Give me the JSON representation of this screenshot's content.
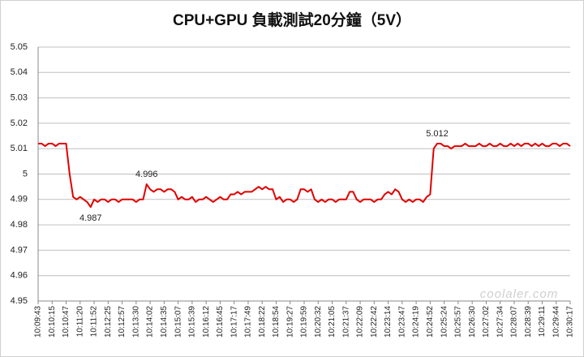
{
  "chart_data": {
    "type": "line",
    "title": "CPU+GPU 負載測試20分鐘（5V）",
    "watermark": "coolaler.com",
    "categories": [
      "10:09:43",
      null,
      null,
      null,
      "10:10:15",
      null,
      null,
      null,
      "10:10:47",
      null,
      null,
      null,
      "10:11:20",
      null,
      null,
      null,
      "10:11:52",
      null,
      null,
      null,
      "10:12:25",
      null,
      null,
      null,
      "10:12:57",
      null,
      null,
      null,
      "10:13:30",
      null,
      null,
      null,
      "10:14:02",
      null,
      null,
      null,
      "10:14:35",
      null,
      null,
      null,
      "10:15:07",
      null,
      null,
      null,
      "10:15:39",
      null,
      null,
      null,
      "10:16:12",
      null,
      null,
      null,
      "10:16:45",
      null,
      null,
      null,
      "10:17:17",
      null,
      null,
      null,
      "10:17:49",
      null,
      null,
      null,
      "10:18:22",
      null,
      null,
      null,
      "10:18:54",
      null,
      null,
      null,
      "10:19:27",
      null,
      null,
      null,
      "10:19:59",
      null,
      null,
      null,
      "10:20:32",
      null,
      null,
      null,
      "10:21:05",
      null,
      null,
      null,
      "10:21:37",
      null,
      null,
      null,
      "10:22:09",
      null,
      null,
      null,
      "10:22:42",
      null,
      null,
      null,
      "10:23:14",
      null,
      null,
      null,
      "10:23:47",
      null,
      null,
      null,
      "10:24:19",
      null,
      null,
      null,
      "10:24:52",
      null,
      null,
      null,
      "10:25:24",
      null,
      null,
      null,
      "10:25:57",
      null,
      null,
      null,
      "10:26:30",
      null,
      null,
      null,
      "10:27:02",
      null,
      null,
      null,
      "10:27:34",
      null,
      null,
      null,
      "10:28:07",
      null,
      null,
      null,
      "10:28:39",
      null,
      null,
      null,
      "10:29:11",
      null,
      null,
      null,
      "10:29:44",
      null,
      null,
      null,
      "10:30:17"
    ],
    "series": [
      {
        "color": "#e00000",
        "values": [
          5.012,
          5.012,
          5.011,
          5.012,
          5.012,
          5.011,
          5.012,
          5.012,
          5.012,
          5,
          4.991,
          4.99,
          4.991,
          4.99,
          4.989,
          4.987,
          4.99,
          4.989,
          4.99,
          4.99,
          4.989,
          4.99,
          4.99,
          4.989,
          4.99,
          4.99,
          4.99,
          4.99,
          4.989,
          4.99,
          4.99,
          4.996,
          4.994,
          4.993,
          4.994,
          4.994,
          4.993,
          4.994,
          4.994,
          4.993,
          4.99,
          4.991,
          4.99,
          4.99,
          4.991,
          4.989,
          4.99,
          4.99,
          4.991,
          4.99,
          4.989,
          4.99,
          4.991,
          4.99,
          4.99,
          4.992,
          4.992,
          4.993,
          4.992,
          4.993,
          4.993,
          4.993,
          4.994,
          4.995,
          4.994,
          4.995,
          4.994,
          4.994,
          4.99,
          4.991,
          4.989,
          4.99,
          4.99,
          4.989,
          4.99,
          4.994,
          4.994,
          4.993,
          4.994,
          4.99,
          4.989,
          4.99,
          4.989,
          4.99,
          4.99,
          4.989,
          4.99,
          4.99,
          4.99,
          4.993,
          4.993,
          4.99,
          4.989,
          4.99,
          4.99,
          4.99,
          4.989,
          4.99,
          4.99,
          4.992,
          4.993,
          4.992,
          4.994,
          4.993,
          4.99,
          4.989,
          4.99,
          4.989,
          4.99,
          4.99,
          4.989,
          4.991,
          4.992,
          5.01,
          5.012,
          5.012,
          5.011,
          5.011,
          5.01,
          5.011,
          5.011,
          5.011,
          5.012,
          5.011,
          5.011,
          5.011,
          5.012,
          5.011,
          5.011,
          5.012,
          5.011,
          5.011,
          5.012,
          5.011,
          5.011,
          5.012,
          5.011,
          5.012,
          5.011,
          5.012,
          5.012,
          5.011,
          5.012,
          5.011,
          5.012,
          5.011,
          5.011,
          5.012,
          5.012,
          5.011,
          5.012,
          5.012,
          5.011
        ],
        "value_labels": [
          null,
          null,
          null,
          null,
          null,
          null,
          null,
          null,
          null,
          null,
          null,
          null,
          null,
          null,
          null,
          "4.987",
          null,
          null,
          null,
          null,
          null,
          null,
          null,
          null,
          null,
          null,
          null,
          null,
          null,
          null,
          null,
          "4.996",
          null,
          null,
          null,
          null,
          null,
          null,
          null,
          null,
          null,
          null,
          null,
          null,
          null,
          null,
          null,
          null,
          null,
          null,
          null,
          null,
          null,
          null,
          null,
          null,
          null,
          null,
          null,
          null,
          null,
          null,
          null,
          null,
          null,
          null,
          null,
          null,
          null,
          null,
          null,
          null,
          null,
          null,
          null,
          null,
          null,
          null,
          null,
          null,
          null,
          null,
          null,
          null,
          null,
          null,
          null,
          null,
          null,
          null,
          null,
          null,
          null,
          null,
          null,
          null,
          null,
          null,
          null,
          null,
          null,
          null,
          null,
          null,
          null,
          null,
          null,
          null,
          null,
          null,
          null,
          null,
          null,
          null,
          "5.012",
          null,
          null,
          null,
          null,
          null,
          null,
          null,
          null,
          null,
          null,
          null,
          null,
          null,
          null,
          null,
          null,
          null,
          null,
          null,
          null,
          null,
          null,
          null,
          null,
          null,
          null,
          null,
          null,
          null,
          null,
          null,
          null,
          null,
          null,
          null,
          null,
          null,
          null
        ]
      }
    ],
    "ylim": [
      4.95,
      5.05
    ],
    "yticks": [
      4.95,
      4.96,
      4.97,
      4.98,
      4.99,
      5,
      5.01,
      5.02,
      5.03,
      5.04,
      5.05
    ],
    "grid": true
  }
}
